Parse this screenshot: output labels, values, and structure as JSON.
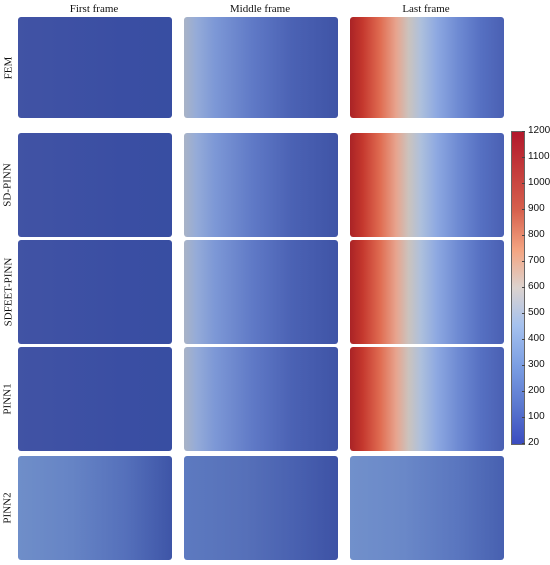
{
  "column_titles": [
    "First frame",
    "Middle frame",
    "Last frame"
  ],
  "row_labels": [
    "FEM",
    "SD-PINN",
    "SDFEET-PINN",
    "PINN1",
    "PINN2"
  ],
  "colorbar": {
    "ticks": [
      "1200",
      "1100",
      "1000",
      "900",
      "800",
      "700",
      "600",
      "500",
      "400",
      "300",
      "200",
      "100",
      "20"
    ],
    "colors": {
      "max": "#b2182b",
      "mid": "#dcd3cf",
      "min": "#3b4cc0"
    }
  }
}
